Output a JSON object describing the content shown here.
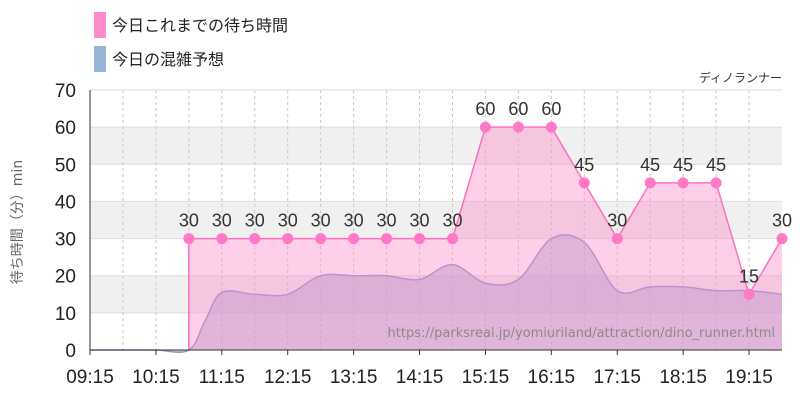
{
  "chart_data": {
    "type": "area",
    "legend": [
      {
        "name": "今日これまでの待ち時間",
        "color": "#ff8ccc"
      },
      {
        "name": "今日の混雑予想",
        "color": "#98b4d4"
      }
    ],
    "attraction": "ディノランナー",
    "watermark": "https://parksreal.jp/yomiuriland/attraction/dino_runner.html",
    "ylabel": "待ち時間（分）min",
    "ylim": [
      0,
      70
    ],
    "yticks": [
      "0",
      "10",
      "20",
      "30",
      "40",
      "50",
      "60",
      "70"
    ],
    "xticks": [
      "09:15",
      "10:15",
      "11:15",
      "12:15",
      "13:15",
      "14:15",
      "15:15",
      "16:15",
      "17:15",
      "18:15",
      "19:15"
    ],
    "xrange": [
      "09:15",
      "19:45"
    ],
    "series": [
      {
        "name": "今日これまでの待ち時間",
        "x": [
          "10:45",
          "11:15",
          "11:45",
          "12:15",
          "12:45",
          "13:15",
          "13:45",
          "14:15",
          "14:45",
          "15:15",
          "15:45",
          "16:15",
          "16:45",
          "17:15",
          "17:45",
          "18:15",
          "18:45",
          "19:15",
          "19:45"
        ],
        "values": [
          30,
          30,
          30,
          30,
          30,
          30,
          30,
          30,
          30,
          60,
          60,
          60,
          45,
          30,
          45,
          45,
          45,
          15,
          30
        ],
        "labels": [
          "30",
          "30",
          "30",
          "30",
          "30",
          "30",
          "30",
          "30",
          "30",
          "60",
          "60",
          "60",
          "45",
          "30",
          "45",
          "45",
          "45",
          "15",
          "30"
        ]
      },
      {
        "name": "今日の混雑予想",
        "x": [
          "09:15",
          "09:45",
          "10:15",
          "10:45",
          "11:00",
          "11:15",
          "11:45",
          "12:15",
          "12:45",
          "13:15",
          "13:45",
          "14:15",
          "14:45",
          "15:15",
          "15:45",
          "16:15",
          "16:45",
          "17:15",
          "17:45",
          "18:15",
          "18:45",
          "19:15",
          "19:45"
        ],
        "values": [
          0,
          0,
          0,
          0,
          8,
          15.5,
          15,
          15,
          20,
          20,
          20,
          19,
          23,
          18,
          19,
          30,
          29,
          16,
          17,
          17,
          16,
          16,
          15
        ]
      }
    ]
  }
}
